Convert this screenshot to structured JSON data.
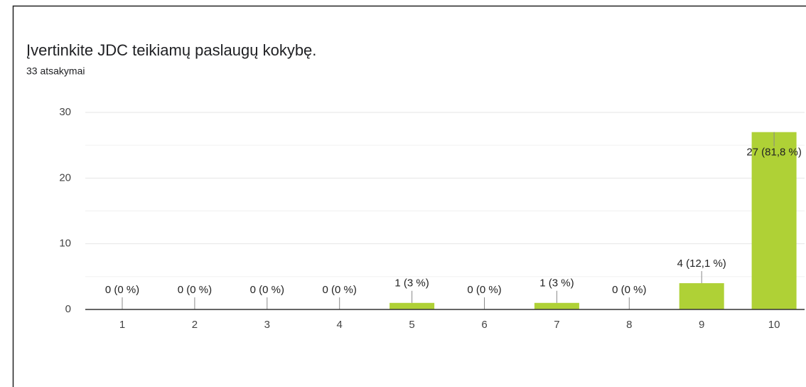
{
  "chart_data": {
    "type": "bar",
    "title": "Įvertinkite JDC teikiamų paslaugų kokybę.",
    "subtitle": "33 atsakymai",
    "categories": [
      "1",
      "2",
      "3",
      "4",
      "5",
      "6",
      "7",
      "8",
      "9",
      "10"
    ],
    "values": [
      0,
      0,
      0,
      0,
      1,
      0,
      1,
      0,
      4,
      27
    ],
    "value_labels": [
      "0 (0 %)",
      "0 (0 %)",
      "0 (0 %)",
      "0 (0 %)",
      "1 (3 %)",
      "0 (0 %)",
      "1 (3 %)",
      "0 (0 %)",
      "4 (12,1 %)",
      "27 (81,8 %)"
    ],
    "color": "#afd136",
    "ylim": [
      0,
      30
    ],
    "yticks": [
      0,
      10,
      20,
      30
    ],
    "minor_yticks": [
      5,
      15,
      25
    ],
    "grid": true
  }
}
